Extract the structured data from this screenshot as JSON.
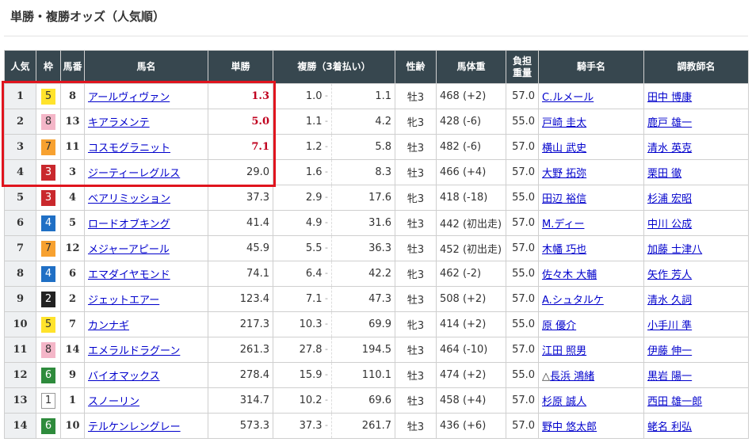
{
  "title": "単勝・複勝オッズ（人気順）",
  "headers": {
    "rank": "人気",
    "waku": "枠",
    "umaban": "馬番",
    "name": "馬名",
    "win": "単勝",
    "place": "複勝（3着払い）",
    "sexage": "性齢",
    "weight": "馬体重",
    "load1": "負担",
    "load2": "重量",
    "jockey": "騎手名",
    "trainer": "調教師名"
  },
  "waku_colors": {
    "1": "#ffffff",
    "2": "#222222",
    "3": "#c9282d",
    "4": "#1f6fc5",
    "5": "#ffe32c",
    "6": "#2e8b3c",
    "7": "#f7a130",
    "8": "#f4b6c8"
  },
  "highlight_color": "#e0141e",
  "rows": [
    {
      "rank": "1",
      "waku": "5",
      "umaban": "8",
      "name": "アールヴィヴァン",
      "win": "1.3",
      "fav": true,
      "plo": "1.0",
      "phi": "1.1",
      "sexage": "牡3",
      "weight": "468 (+2)",
      "load": "57.0",
      "jockey_prefix": "",
      "jockey": "C.ルメール",
      "trainer": "田中 博康"
    },
    {
      "rank": "2",
      "waku": "8",
      "umaban": "13",
      "name": "キアラメンテ",
      "win": "5.0",
      "fav": true,
      "plo": "1.1",
      "phi": "4.2",
      "sexage": "牝3",
      "weight": "428 (-6)",
      "load": "55.0",
      "jockey_prefix": "",
      "jockey": "戸崎 圭太",
      "trainer": "鹿戸 雄一"
    },
    {
      "rank": "3",
      "waku": "7",
      "umaban": "11",
      "name": "コスモグラニット",
      "win": "7.1",
      "fav": true,
      "plo": "1.2",
      "phi": "5.8",
      "sexage": "牡3",
      "weight": "482 (-6)",
      "load": "57.0",
      "jockey_prefix": "",
      "jockey": "横山 武史",
      "trainer": "清水 英克"
    },
    {
      "rank": "4",
      "waku": "3",
      "umaban": "3",
      "name": "ジーティーレグルス",
      "win": "29.0",
      "fav": false,
      "plo": "1.6",
      "phi": "8.3",
      "sexage": "牡3",
      "weight": "466 (+4)",
      "load": "57.0",
      "jockey_prefix": "",
      "jockey": "大野 拓弥",
      "trainer": "栗田 徹"
    },
    {
      "rank": "5",
      "waku": "3",
      "umaban": "4",
      "name": "ベアリミッション",
      "win": "37.3",
      "fav": false,
      "plo": "2.9",
      "phi": "17.6",
      "sexage": "牝3",
      "weight": "418 (-18)",
      "load": "55.0",
      "jockey_prefix": "",
      "jockey": "田辺 裕信",
      "trainer": "杉浦 宏昭"
    },
    {
      "rank": "6",
      "waku": "4",
      "umaban": "5",
      "name": "ロードオブキング",
      "win": "41.4",
      "fav": false,
      "plo": "4.9",
      "phi": "31.6",
      "sexage": "牡3",
      "weight": "442 (初出走)",
      "load": "57.0",
      "jockey_prefix": "",
      "jockey": "M.ディー",
      "trainer": "中川 公成"
    },
    {
      "rank": "7",
      "waku": "7",
      "umaban": "12",
      "name": "メジャーアピール",
      "win": "45.9",
      "fav": false,
      "plo": "5.5",
      "phi": "36.3",
      "sexage": "牡3",
      "weight": "452 (初出走)",
      "load": "57.0",
      "jockey_prefix": "",
      "jockey": "木幡 巧也",
      "trainer": "加藤 士津八"
    },
    {
      "rank": "8",
      "waku": "4",
      "umaban": "6",
      "name": "エマダイヤモンド",
      "win": "74.1",
      "fav": false,
      "plo": "6.4",
      "phi": "42.2",
      "sexage": "牝3",
      "weight": "462 (-2)",
      "load": "55.0",
      "jockey_prefix": "",
      "jockey": "佐々木 大輔",
      "trainer": "矢作 芳人"
    },
    {
      "rank": "9",
      "waku": "2",
      "umaban": "2",
      "name": "ジェットエアー",
      "win": "123.4",
      "fav": false,
      "plo": "7.1",
      "phi": "47.3",
      "sexage": "牡3",
      "weight": "508 (+2)",
      "load": "57.0",
      "jockey_prefix": "",
      "jockey": "A.シュタルケ",
      "trainer": "清水 久詞"
    },
    {
      "rank": "10",
      "waku": "5",
      "umaban": "7",
      "name": "カンナギ",
      "win": "217.3",
      "fav": false,
      "plo": "10.3",
      "phi": "69.9",
      "sexage": "牝3",
      "weight": "414 (+2)",
      "load": "55.0",
      "jockey_prefix": "",
      "jockey": "原 優介",
      "trainer": "小手川 準"
    },
    {
      "rank": "11",
      "waku": "8",
      "umaban": "14",
      "name": "エメラルドラグーン",
      "win": "261.3",
      "fav": false,
      "plo": "27.8",
      "phi": "194.5",
      "sexage": "牡3",
      "weight": "464 (-10)",
      "load": "57.0",
      "jockey_prefix": "",
      "jockey": "江田 照男",
      "trainer": "伊藤 伸一"
    },
    {
      "rank": "12",
      "waku": "6",
      "umaban": "9",
      "name": "バイオマックス",
      "win": "278.4",
      "fav": false,
      "plo": "15.9",
      "phi": "110.1",
      "sexage": "牡3",
      "weight": "474 (+2)",
      "load": "55.0",
      "jockey_prefix": "△",
      "jockey": "長浜 鴻緒",
      "trainer": "黒岩 陽一"
    },
    {
      "rank": "13",
      "waku": "1",
      "umaban": "1",
      "name": "スノーリン",
      "win": "314.7",
      "fav": false,
      "plo": "10.2",
      "phi": "69.6",
      "sexage": "牡3",
      "weight": "458 (+4)",
      "load": "57.0",
      "jockey_prefix": "",
      "jockey": "杉原 誠人",
      "trainer": "西田 雄一郎"
    },
    {
      "rank": "14",
      "waku": "6",
      "umaban": "10",
      "name": "テルケンレングレー",
      "win": "573.3",
      "fav": false,
      "plo": "37.3",
      "phi": "261.7",
      "sexage": "牡3",
      "weight": "436 (+6)",
      "load": "57.0",
      "jockey_prefix": "",
      "jockey": "野中 悠太郎",
      "trainer": "蛯名 利弘"
    }
  ]
}
